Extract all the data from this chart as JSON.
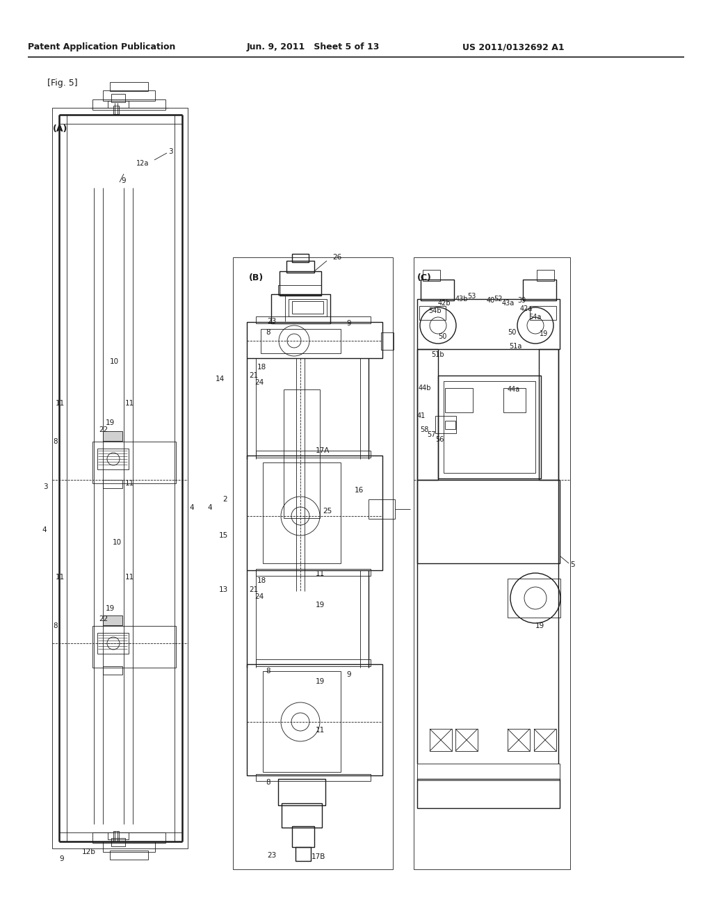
{
  "bg_color": "#ffffff",
  "line_color": "#1a1a1a",
  "header_text_left": "Patent Application Publication",
  "header_text_mid": "Jun. 9, 2011   Sheet 5 of 13",
  "header_text_right": "US 2011/0132692 A1",
  "fig_label": "[Fig. 5]"
}
